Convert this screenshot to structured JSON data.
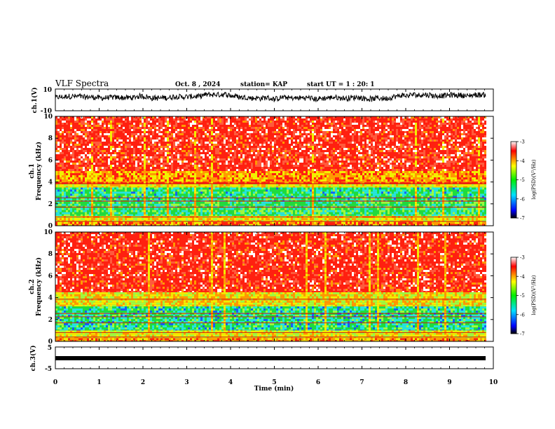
{
  "header": {
    "title": "VLF Spectra",
    "date": "Oct. 8 , 2024",
    "station": "station= KAP",
    "start_ut": "start UT =  1 : 20: 1"
  },
  "chart_data": [
    {
      "type": "line",
      "panel": "ch1-waveform",
      "ylabel": "ch.1(V)",
      "ylim": [
        -10,
        10
      ],
      "yticks": [
        "10",
        "-10"
      ],
      "x_range_min": [
        0,
        9.83
      ],
      "description_of_values": "noisy waveform oscillating roughly between -4 and 6 V",
      "color": "#000000"
    },
    {
      "type": "heatmap",
      "panel": "ch1-spectrogram",
      "ylabel": "ch.1\nFrequency  (kHz)",
      "ylim": [
        0,
        10
      ],
      "yticks": [
        "0",
        "2",
        "4",
        "6",
        "8",
        "10"
      ],
      "colorbar": {
        "label": "log(PSD)(V²/Hz)",
        "range": [
          -7,
          -3
        ],
        "ticks": [
          "-3",
          "-4",
          "-5",
          "-6",
          "-7"
        ]
      }
    },
    {
      "type": "heatmap",
      "panel": "ch2-spectrogram",
      "ylabel": "ch.2\nFrequency  (kHz)",
      "ylim": [
        0,
        10
      ],
      "yticks": [
        "0",
        "2",
        "4",
        "6",
        "8",
        "10"
      ],
      "colorbar": {
        "label": "log(PSD)(V²/Hz)",
        "range": [
          -7,
          -3
        ],
        "ticks": [
          "-3",
          "-4",
          "-5",
          "-6",
          "-7"
        ]
      }
    },
    {
      "type": "line",
      "panel": "ch3-waveform",
      "ylabel": "ch.3(V)",
      "ylim": [
        -5,
        5
      ],
      "yticks": [
        "5",
        "-5"
      ],
      "constant_value": -0.7,
      "color": "#000000"
    }
  ],
  "xaxis": {
    "label": "Time  (min)",
    "range": [
      0,
      10
    ],
    "ticks": [
      "0",
      "1",
      "2",
      "3",
      "4",
      "5",
      "6",
      "7",
      "8",
      "9",
      "10"
    ],
    "data_end": 9.83
  }
}
